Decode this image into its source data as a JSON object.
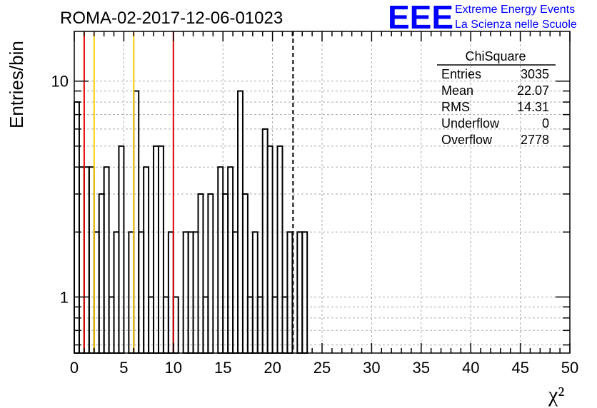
{
  "chart_data": {
    "type": "histogram",
    "title": "ROMA-02-2017-12-06-01023",
    "ylabel": "Entries/bin",
    "xlabel": "χ²",
    "xlim": [
      0,
      50
    ],
    "ylim": [
      0.55,
      17
    ],
    "yscale": "log",
    "grid": true,
    "bin_width": 0.5,
    "x_ticks": [
      0,
      5,
      10,
      15,
      20,
      25,
      30,
      35,
      40,
      45,
      50
    ],
    "y_ticks": [
      1,
      10
    ],
    "values": [
      8,
      4,
      4,
      4,
      2,
      3,
      4,
      1,
      2,
      5,
      0,
      2,
      9,
      2,
      4,
      1,
      5,
      5,
      1,
      2,
      1,
      0,
      2,
      2,
      2,
      3,
      1,
      3,
      0,
      4,
      3,
      4,
      2,
      9,
      3,
      1,
      2,
      1,
      6,
      5,
      1,
      5,
      1,
      2,
      0,
      2,
      2,
      0,
      0,
      0,
      0,
      0,
      0,
      0,
      0,
      0,
      0,
      0,
      0,
      0
    ],
    "vertical_lines": [
      {
        "x": 1,
        "color": "#e00000",
        "style": "solid"
      },
      {
        "x": 2,
        "color": "#ffcc00",
        "style": "solid"
      },
      {
        "x": 6,
        "color": "#ffcc00",
        "style": "solid"
      },
      {
        "x": 10,
        "color": "#e00000",
        "style": "solid"
      },
      {
        "x": 22.07,
        "color": "#000000",
        "style": "dashed"
      }
    ],
    "stats_box": {
      "name": "ChiSquare",
      "rows": [
        {
          "label": "Entries",
          "value": "3035"
        },
        {
          "label": "Mean",
          "value": "22.07"
        },
        {
          "label": "RMS",
          "value": "14.31"
        },
        {
          "label": "Underflow",
          "value": "0"
        },
        {
          "label": "Overflow",
          "value": "2778"
        }
      ]
    }
  },
  "logo": {
    "text": "EEE",
    "line1": "Extreme Energy Events",
    "line2": "La Scienza nelle Scuole",
    "color": "#0000ff"
  }
}
